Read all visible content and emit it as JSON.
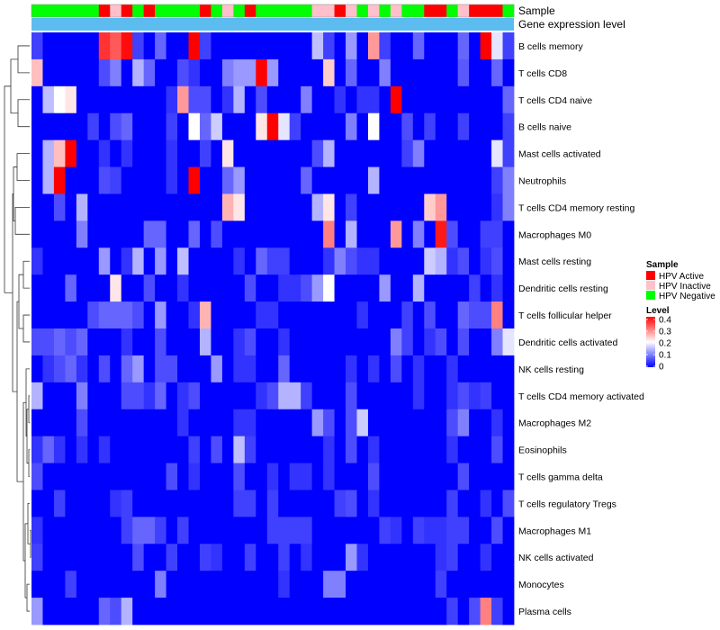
{
  "chart_data": {
    "type": "heatmap",
    "title": "",
    "annotation_labels": [
      "Sample",
      "Gene expression level"
    ],
    "rows": [
      "B cells memory",
      "T cells CD8",
      "T cells CD4 naive",
      "B cells naive",
      "Mast cells activated",
      "Neutrophils",
      "T cells CD4 memory resting",
      "Macrophages M0",
      "Mast cells resting",
      "Dendritic cells resting",
      "T cells follicular helper",
      "Dendritic cells activated",
      "NK cells resting",
      "T cells CD4 memory activated",
      "Macrophages M2",
      "Eosinophils",
      "T cells gamma delta",
      "T cells regulatory  Tregs",
      "Macrophages M1",
      "NK cells activated",
      "Monocytes",
      "Plasma cells"
    ],
    "sample_groups": [
      "N",
      "N",
      "N",
      "N",
      "N",
      "N",
      "A",
      "I",
      "A",
      "N",
      "A",
      "N",
      "N",
      "N",
      "N",
      "A",
      "N",
      "I",
      "N",
      "A",
      "N",
      "N",
      "N",
      "N",
      "N",
      "I",
      "I",
      "A",
      "I",
      "N",
      "I",
      "N",
      "I",
      "N",
      "N",
      "A",
      "A",
      "N",
      "I",
      "A",
      "A",
      "A",
      "N"
    ],
    "values": [
      [
        0.05,
        0.0,
        0.0,
        0.0,
        0.0,
        0.0,
        0.36,
        0.33,
        0.39,
        0.05,
        0.0,
        0.08,
        0.0,
        0.0,
        0.4,
        0.05,
        0.0,
        0.0,
        0.0,
        0.0,
        0.0,
        0.0,
        0.0,
        0.0,
        0.0,
        0.15,
        0.05,
        0.0,
        0.12,
        0.0,
        0.28,
        0.05,
        0.0,
        0.0,
        0.08,
        0.0,
        0.0,
        0.0,
        0.08,
        0.0,
        0.4,
        0.18,
        0.05
      ],
      [
        0.25,
        0.0,
        0.0,
        0.0,
        0.0,
        0.0,
        0.06,
        0.1,
        0.0,
        0.14,
        0.08,
        0.0,
        0.0,
        0.06,
        0.04,
        0.0,
        0.0,
        0.1,
        0.12,
        0.12,
        0.4,
        0.12,
        0.0,
        0.0,
        0.0,
        0.0,
        0.24,
        0.0,
        0.08,
        0.0,
        0.0,
        0.1,
        0.0,
        0.0,
        0.0,
        0.0,
        0.0,
        0.0,
        0.07,
        0.0,
        0.0,
        0.08,
        0.0
      ],
      [
        0.0,
        0.15,
        0.2,
        0.22,
        0.0,
        0.0,
        0.0,
        0.0,
        0.0,
        0.0,
        0.0,
        0.0,
        0.04,
        0.28,
        0.06,
        0.06,
        0.0,
        0.04,
        0.14,
        0.0,
        0.06,
        0.0,
        0.0,
        0.0,
        0.1,
        0.0,
        0.0,
        0.04,
        0.0,
        0.04,
        0.04,
        0.0,
        0.42,
        0.0,
        0.0,
        0.0,
        0.0,
        0.0,
        0.0,
        0.0,
        0.0,
        0.0,
        0.08
      ],
      [
        0.0,
        0.0,
        0.0,
        0.0,
        0.0,
        0.05,
        0.0,
        0.06,
        0.08,
        0.0,
        0.0,
        0.0,
        0.05,
        0.0,
        0.2,
        0.08,
        0.16,
        0.0,
        0.0,
        0.0,
        0.22,
        0.4,
        0.18,
        0.05,
        0.0,
        0.0,
        0.0,
        0.0,
        0.1,
        0.0,
        0.2,
        0.0,
        0.0,
        0.06,
        0.0,
        0.05,
        0.0,
        0.0,
        0.05,
        0.0,
        0.0,
        0.0,
        0.05
      ],
      [
        0.0,
        0.14,
        0.25,
        0.4,
        0.0,
        0.0,
        0.04,
        0.0,
        0.04,
        0.0,
        0.0,
        0.0,
        0.04,
        0.0,
        0.0,
        0.05,
        0.0,
        0.22,
        0.0,
        0.0,
        0.0,
        0.0,
        0.0,
        0.0,
        0.0,
        0.06,
        0.14,
        0.0,
        0.0,
        0.0,
        0.0,
        0.0,
        0.0,
        0.05,
        0.1,
        0.0,
        0.0,
        0.0,
        0.0,
        0.0,
        0.0,
        0.18,
        0.05
      ],
      [
        0.0,
        0.14,
        0.4,
        0.0,
        0.0,
        0.0,
        0.06,
        0.05,
        0.0,
        0.0,
        0.0,
        0.0,
        0.04,
        0.0,
        0.42,
        0.0,
        0.0,
        0.08,
        0.12,
        0.0,
        0.0,
        0.0,
        0.0,
        0.0,
        0.08,
        0.0,
        0.0,
        0.0,
        0.0,
        0.0,
        0.14,
        0.0,
        0.0,
        0.0,
        0.0,
        0.0,
        0.0,
        0.0,
        0.0,
        0.0,
        0.0,
        0.05,
        0.1
      ],
      [
        0.0,
        0.0,
        0.06,
        0.0,
        0.14,
        0.0,
        0.0,
        0.0,
        0.0,
        0.0,
        0.0,
        0.0,
        0.0,
        0.0,
        0.0,
        0.0,
        0.0,
        0.26,
        0.22,
        0.0,
        0.0,
        0.0,
        0.0,
        0.0,
        0.0,
        0.14,
        0.22,
        0.0,
        0.05,
        0.0,
        0.0,
        0.0,
        0.0,
        0.0,
        0.0,
        0.24,
        0.28,
        0.0,
        0.0,
        0.0,
        0.0,
        0.04,
        0.1
      ],
      [
        0.0,
        0.0,
        0.0,
        0.0,
        0.1,
        0.0,
        0.0,
        0.0,
        0.0,
        0.0,
        0.08,
        0.08,
        0.0,
        0.0,
        0.08,
        0.0,
        0.06,
        0.0,
        0.0,
        0.0,
        0.0,
        0.0,
        0.0,
        0.0,
        0.0,
        0.0,
        0.3,
        0.0,
        0.14,
        0.0,
        0.0,
        0.0,
        0.28,
        0.0,
        0.1,
        0.0,
        0.38,
        0.06,
        0.0,
        0.0,
        0.05,
        0.05,
        0.0
      ],
      [
        0.04,
        0.0,
        0.0,
        0.0,
        0.0,
        0.0,
        0.12,
        0.0,
        0.04,
        0.14,
        0.0,
        0.12,
        0.0,
        0.15,
        0.0,
        0.0,
        0.0,
        0.0,
        0.04,
        0.0,
        0.08,
        0.05,
        0.05,
        0.0,
        0.0,
        0.0,
        0.04,
        0.1,
        0.06,
        0.04,
        0.04,
        0.0,
        0.0,
        0.0,
        0.0,
        0.16,
        0.14,
        0.04,
        0.06,
        0.0,
        0.04,
        0.06,
        0.0
      ],
      [
        0.0,
        0.0,
        0.0,
        0.08,
        0.0,
        0.0,
        0.0,
        0.22,
        0.0,
        0.0,
        0.06,
        0.0,
        0.0,
        0.04,
        0.0,
        0.0,
        0.0,
        0.0,
        0.0,
        0.06,
        0.0,
        0.0,
        0.04,
        0.04,
        0.06,
        0.12,
        0.2,
        0.0,
        0.0,
        0.0,
        0.0,
        0.12,
        0.0,
        0.0,
        0.14,
        0.0,
        0.0,
        0.0,
        0.0,
        0.05,
        0.0,
        0.04,
        0.0
      ],
      [
        0.0,
        0.0,
        0.0,
        0.0,
        0.0,
        0.06,
        0.08,
        0.08,
        0.08,
        0.06,
        0.0,
        0.12,
        0.0,
        0.0,
        0.04,
        0.26,
        0.0,
        0.0,
        0.0,
        0.0,
        0.04,
        0.04,
        0.0,
        0.0,
        0.0,
        0.0,
        0.0,
        0.0,
        0.0,
        0.04,
        0.0,
        0.0,
        0.0,
        0.05,
        0.0,
        0.06,
        0.0,
        0.0,
        0.08,
        0.06,
        0.06,
        0.3,
        0.0
      ],
      [
        0.06,
        0.06,
        0.08,
        0.06,
        0.08,
        0.0,
        0.0,
        0.0,
        0.04,
        0.0,
        0.0,
        0.06,
        0.0,
        0.0,
        0.0,
        0.14,
        0.0,
        0.0,
        0.04,
        0.06,
        0.0,
        0.0,
        0.04,
        0.0,
        0.0,
        0.0,
        0.0,
        0.0,
        0.0,
        0.0,
        0.0,
        0.0,
        0.1,
        0.05,
        0.0,
        0.04,
        0.06,
        0.0,
        0.06,
        0.0,
        0.0,
        0.1,
        0.18
      ],
      [
        0.0,
        0.04,
        0.06,
        0.08,
        0.04,
        0.0,
        0.06,
        0.0,
        0.08,
        0.12,
        0.0,
        0.06,
        0.06,
        0.0,
        0.0,
        0.0,
        0.12,
        0.0,
        0.04,
        0.04,
        0.0,
        0.0,
        0.08,
        0.0,
        0.0,
        0.0,
        0.0,
        0.0,
        0.04,
        0.0,
        0.04,
        0.0,
        0.06,
        0.0,
        0.04,
        0.0,
        0.0,
        0.04,
        0.0,
        0.0,
        0.0,
        0.0,
        0.0
      ],
      [
        0.14,
        0.0,
        0.0,
        0.0,
        0.1,
        0.0,
        0.0,
        0.0,
        0.06,
        0.06,
        0.04,
        0.08,
        0.0,
        0.04,
        0.06,
        0.0,
        0.0,
        0.0,
        0.0,
        0.0,
        0.04,
        0.06,
        0.14,
        0.14,
        0.05,
        0.0,
        0.0,
        0.0,
        0.06,
        0.0,
        0.0,
        0.0,
        0.0,
        0.0,
        0.04,
        0.0,
        0.0,
        0.04,
        0.06,
        0.04,
        0.05,
        0.0,
        0.0
      ],
      [
        0.0,
        0.0,
        0.0,
        0.0,
        0.06,
        0.0,
        0.0,
        0.0,
        0.0,
        0.0,
        0.0,
        0.0,
        0.0,
        0.04,
        0.0,
        0.0,
        0.0,
        0.0,
        0.04,
        0.04,
        0.0,
        0.0,
        0.0,
        0.0,
        0.0,
        0.12,
        0.06,
        0.0,
        0.06,
        0.16,
        0.0,
        0.0,
        0.0,
        0.0,
        0.0,
        0.0,
        0.0,
        0.06,
        0.1,
        0.0,
        0.0,
        0.04,
        0.0
      ],
      [
        0.04,
        0.08,
        0.04,
        0.0,
        0.04,
        0.0,
        0.04,
        0.0,
        0.0,
        0.0,
        0.0,
        0.0,
        0.0,
        0.0,
        0.05,
        0.0,
        0.06,
        0.0,
        0.15,
        0.05,
        0.0,
        0.0,
        0.0,
        0.0,
        0.0,
        0.0,
        0.04,
        0.0,
        0.06,
        0.0,
        0.04,
        0.0,
        0.0,
        0.0,
        0.0,
        0.0,
        0.0,
        0.04,
        0.0,
        0.0,
        0.0,
        0.06,
        0.0
      ],
      [
        0.06,
        0.0,
        0.0,
        0.0,
        0.0,
        0.0,
        0.0,
        0.0,
        0.0,
        0.0,
        0.0,
        0.0,
        0.06,
        0.0,
        0.04,
        0.0,
        0.0,
        0.0,
        0.06,
        0.0,
        0.0,
        0.04,
        0.0,
        0.04,
        0.04,
        0.0,
        0.04,
        0.0,
        0.0,
        0.0,
        0.06,
        0.0,
        0.0,
        0.0,
        0.0,
        0.0,
        0.0,
        0.0,
        0.06,
        0.0,
        0.0,
        0.0,
        0.0
      ],
      [
        0.0,
        0.0,
        0.05,
        0.0,
        0.0,
        0.0,
        0.0,
        0.04,
        0.05,
        0.0,
        0.0,
        0.0,
        0.0,
        0.0,
        0.0,
        0.0,
        0.0,
        0.0,
        0.05,
        0.05,
        0.0,
        0.05,
        0.0,
        0.0,
        0.0,
        0.0,
        0.0,
        0.05,
        0.06,
        0.0,
        0.04,
        0.0,
        0.0,
        0.0,
        0.0,
        0.0,
        0.0,
        0.05,
        0.0,
        0.0,
        0.04,
        0.0,
        0.06
      ],
      [
        0.04,
        0.0,
        0.0,
        0.0,
        0.0,
        0.0,
        0.0,
        0.0,
        0.05,
        0.08,
        0.08,
        0.05,
        0.0,
        0.05,
        0.0,
        0.0,
        0.0,
        0.0,
        0.0,
        0.0,
        0.0,
        0.05,
        0.05,
        0.05,
        0.05,
        0.0,
        0.0,
        0.0,
        0.0,
        0.0,
        0.0,
        0.05,
        0.04,
        0.0,
        0.05,
        0.04,
        0.04,
        0.05,
        0.05,
        0.0,
        0.0,
        0.06,
        0.0
      ],
      [
        0.05,
        0.0,
        0.0,
        0.0,
        0.0,
        0.0,
        0.0,
        0.0,
        0.0,
        0.06,
        0.0,
        0.0,
        0.05,
        0.0,
        0.0,
        0.05,
        0.04,
        0.0,
        0.0,
        0.05,
        0.0,
        0.0,
        0.05,
        0.0,
        0.04,
        0.0,
        0.0,
        0.0,
        0.12,
        0.04,
        0.0,
        0.0,
        0.0,
        0.0,
        0.0,
        0.0,
        0.04,
        0.05,
        0.0,
        0.0,
        0.04,
        0.0,
        0.0
      ],
      [
        0.0,
        0.0,
        0.0,
        0.05,
        0.0,
        0.0,
        0.0,
        0.0,
        0.0,
        0.0,
        0.0,
        0.1,
        0.0,
        0.0,
        0.0,
        0.0,
        0.0,
        0.0,
        0.0,
        0.0,
        0.0,
        0.0,
        0.04,
        0.0,
        0.0,
        0.0,
        0.1,
        0.1,
        0.0,
        0.0,
        0.0,
        0.0,
        0.0,
        0.0,
        0.0,
        0.0,
        0.05,
        0.0,
        0.0,
        0.0,
        0.0,
        0.0,
        0.0
      ],
      [
        0.12,
        0.0,
        0.0,
        0.0,
        0.0,
        0.0,
        0.08,
        0.06,
        0.14,
        0.0,
        0.0,
        0.0,
        0.0,
        0.0,
        0.0,
        0.0,
        0.0,
        0.0,
        0.0,
        0.0,
        0.0,
        0.0,
        0.0,
        0.0,
        0.0,
        0.0,
        0.0,
        0.0,
        0.0,
        0.0,
        0.0,
        0.0,
        0.0,
        0.0,
        0.0,
        0.0,
        0.0,
        0.05,
        0.0,
        0.06,
        0.3,
        0.05,
        0.0
      ]
    ],
    "colorscale": [
      "#0000ff",
      "#ffffff",
      "#ff0000"
    ],
    "legend_sample": {
      "title": "Sample",
      "items": [
        {
          "code": "A",
          "label": "HPV Active",
          "color": "#ff0000"
        },
        {
          "code": "I",
          "label": "HPV Inactive",
          "color": "#ffc0cb"
        },
        {
          "code": "N",
          "label": "HPV Negative",
          "color": "#00ff00"
        }
      ]
    },
    "legend_level": {
      "title": "Level",
      "range": [
        0,
        0.4
      ],
      "ticks": [
        0,
        0.1,
        0.2,
        0.3,
        0.4
      ],
      "tick_labels": [
        "0",
        "0.1",
        "0.2",
        "0.3",
        "0.4"
      ]
    },
    "gene_expression_color": "#5cbcf0"
  }
}
